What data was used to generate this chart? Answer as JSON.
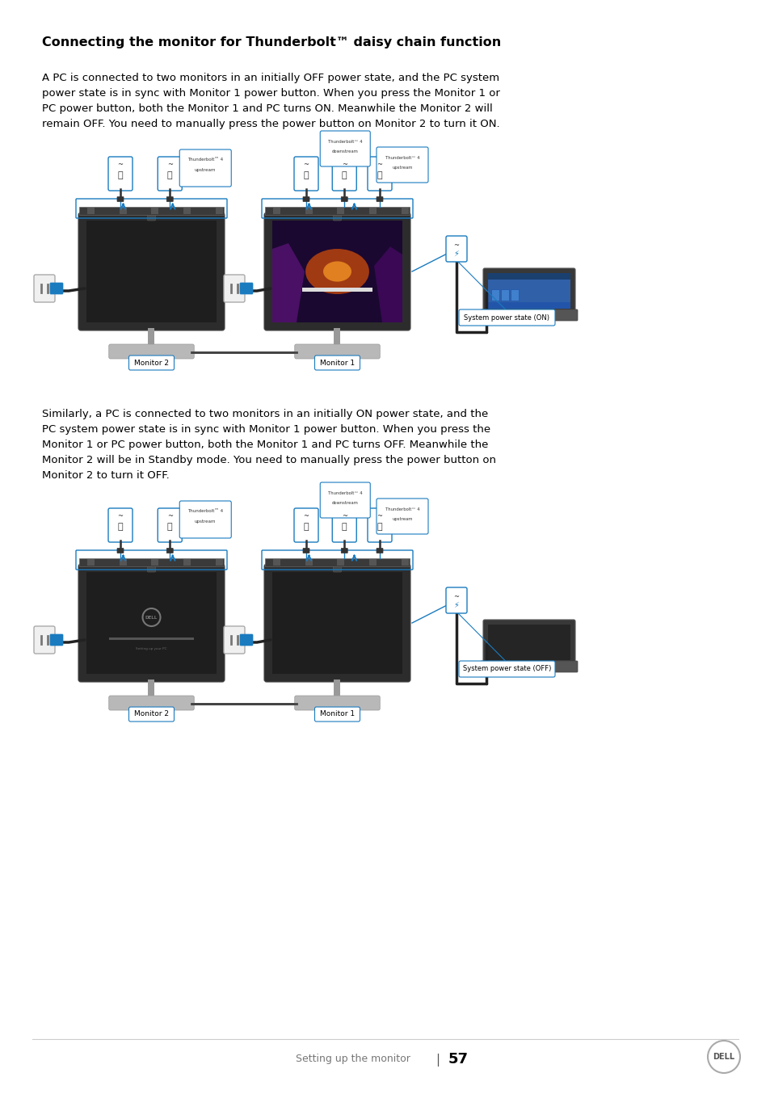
{
  "title": "Connecting the monitor for Thunderbolt™ daisy chain function",
  "paragraph1_lines": [
    "A PC is connected to two monitors in an initially OFF power state, and the PC system",
    "power state is in sync with Monitor 1 power button. When you press the Monitor 1 or",
    "PC power button, both the Monitor 1 and PC turns ON. Meanwhile the Monitor 2 will",
    "remain OFF. You need to manually press the power button on Monitor 2 to turn it ON."
  ],
  "paragraph2_lines": [
    "Similarly, a PC is connected to two monitors in an initially ON power state, and the",
    "PC system power state is in sync with Monitor 1 power button. When you press the",
    "Monitor 1 or PC power button, both the Monitor 1 and PC turns OFF. Meanwhile the",
    "Monitor 2 will be in Standby mode. You need to manually press the power button on",
    "Monitor 2 to turn it OFF."
  ],
  "footer_text": "Setting up the monitor",
  "page_number": "57",
  "bg": "#ffffff",
  "text_color": "#000000",
  "blue": "#1a7bbf",
  "dark_gray": "#2a2a2a",
  "mid_gray": "#555555",
  "light_gray": "#cccccc",
  "label_system_on": "System power state (ON)",
  "label_system_off": "System power state (OFF)",
  "label_mon1": "Monitor 1",
  "label_mon2": "Monitor 2",
  "tb4_upstream": "Thunderbolt™ 4\nupstream",
  "tb4_downstream": "Thunderbolt™ 4\ndownstream",
  "tb4_upstream2": "Thunderbolt™ 4\nupstream"
}
